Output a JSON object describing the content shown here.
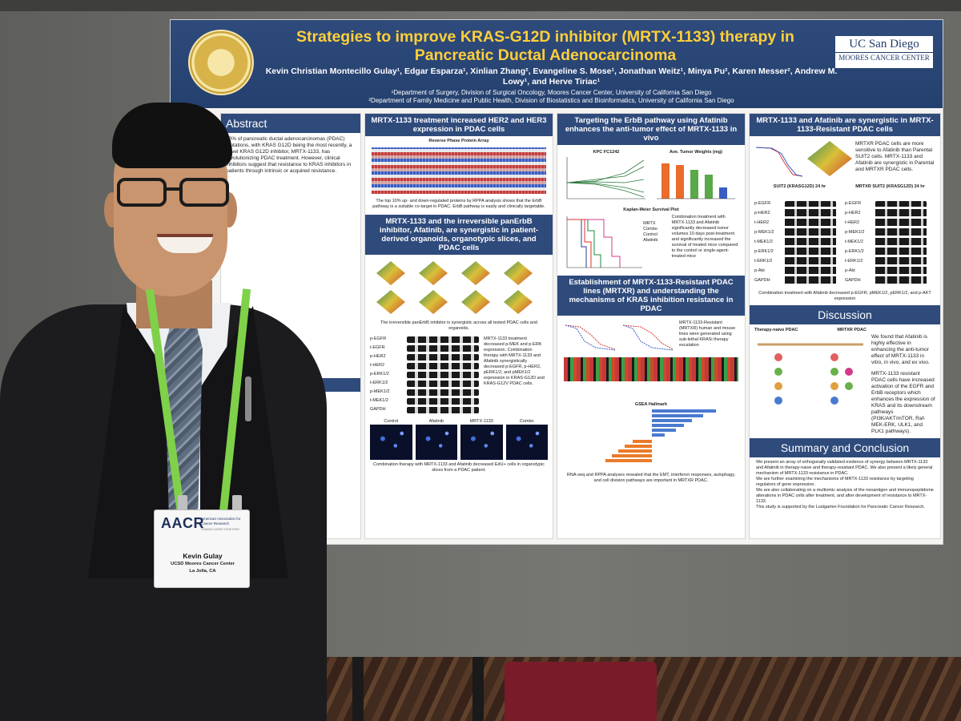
{
  "poster": {
    "title_line1": "Strategies to improve KRAS-G12D inhibitor (MRTX-1133) therapy in",
    "title_line2": "Pancreatic Ductal Adenocarcinoma",
    "authors": "Kevin Christian Montecillo Gulay¹, Edgar Esparza¹, Xinlian Zhang², Evangeline S. Mose¹, Jonathan Weitz¹, Minya Pu², Karen Messer², Andrew M. Lowy¹, and Herve Tiriac¹",
    "affiliation_1": "¹Department of Surgery, Division of Surgical Oncology, Moores Cancer Center, University of California San Diego",
    "affiliation_2": "²Department of Family Medicine and Public Health, Division of Biostatistics and Bioinformatics, University of California San Diego",
    "logo_line1": "UC San Diego",
    "logo_line2": "MOORES CANCER CENTER",
    "abstract_header": "Abstract",
    "abstract_text": "90% of pancreatic ductal adenocarcinomas (PDAC) mutations, with KRAS G12D being the most recently, a novel KRAS G12D inhibitor, MRTX-1133, has revolutionizing PDAC treatment. However, clinical inhibitors suggest that resistance to KRAS inhibitors in patients through intrinsic or acquired resistance.",
    "growth_header": "rowth in vitro",
    "sec_her": "MRTX-1133 treatment increased HER2 and HER3 expression in PDAC cells",
    "rppa_label": "Reverse Phase Protein Array",
    "her_caption": "The top 10% up- and down-regulated proteins by RPPA analysis shows that the ErbB pathway is a suitable co-target in PDAC. ErbB pathway is easily and clinically targetable.",
    "sec_panerbb": "MRTX-1133 and the irreversible panErbB inhibitor, Afatinib, are synergistic in patient-derived organoids, organotypic slices, and PDAC cells",
    "panerbb_caption": "The irreversible panErbB inhibitor is synergistic across all tested PDAC cells and organoids.",
    "blot_rows": [
      "p-EGFR",
      "t-EGFR",
      "p-HER2",
      "t-HER2",
      "p-ERK1/2",
      "t-ERK1/2",
      "p-MEK1/2",
      "t-MEK1/2",
      "GAPDH"
    ],
    "blot_caption": "MRTX-1133 treatment decreased p-MEK and p-ERK expression. Combination therapy with MRTX-1133 and Afatinib synergistically decreased p-EGFR, p-HER2, pERK1/2, and pMEK1/2 expression in KRAS-G12D and KRAS-G12V PDAC cells.",
    "micro_labels": [
      "Control",
      "Afatinib",
      "MRTX-1133",
      "Combo"
    ],
    "micro_caption": "Combination therapy with MRTX-1133 and Afatinib decreased EdU+ cells in organotypic slices from a PDAC patient.",
    "sec_vivo": "Targeting the ErbB pathway using Afatinib enhances the anti-tumor effect of MRTX-1133 in vivo",
    "kpc_label": "KPC FC1242",
    "tumor_weight_label": "Ave. Tumor Weights (mg)",
    "km_label": "Kaplan-Meier Survival Plot",
    "km_legend": [
      "MRTX",
      "Combo",
      "Control",
      "Afatinib"
    ],
    "vivo_caption": "Combination treatment with MRTX-1133 and Afatinib significantly decreased tumor volumes 10 days post-treatment and significantly increased the survival of treated mice compared to the control or single-agent-treated mice",
    "sec_resistant": "Establishment of MRTX-1133-Resistant PDAC lines (MRTXR) and understanding the mechanisms of KRAS inhibition resistance in PDAC",
    "resistant_caption": "MRTX-1133-Resistant (MRTXR) human and mouse lines were generated using sub-lethal KRASi therapy escalation",
    "gsea_label": "GSEA Hallmark",
    "rppa_caption": "RNA-seq and RPPA analyses revealed that the EMT, interferon responses, autophagy, and cell division pathways are important in MRTXR PDAC.",
    "sec_syn": "MRTX-1133 and Afatinib are synergistic in MRTX-1133-Resistant PDAC cells",
    "syn_text": "MRTXR PDAC cells are more sensitive to Afatinib than Parental SUIT2 cells. MRTX-1133 and Afatinib are synergistic in Parental and MRTXR PDAC cells.",
    "suit2_label": "SUIT2 (KRASG12D) 24 hr",
    "mrtxr_label": "MRTXR SUIT2 (KRASG12D) 24 hr",
    "syn_blot_rows": [
      "p-EGFR",
      "p-HER2",
      "t-HER2",
      "p-MEK1/2",
      "t-MEK1/2",
      "p-ERK1/2",
      "t-ERK1/2",
      "p-Akt",
      "GAPDH"
    ],
    "syn_caption": "Combination treatment with Afatinib decreased p-EGFR, pMEK1/2, pERK1/2, and p-AKT expression",
    "discussion_header": "Discussion",
    "disc_left": "Therapy-naive PDAC",
    "disc_right": "MRTXR PDAC",
    "disc_text_1": "We found that Afatinib is highly effective in enhancing the anti-tumor effect of MRTX-1133 in vitro, in vivo, and ex vivo.",
    "disc_text_2": "MRTX-1133 resistant PDAC cells have increased activation of the EGFR and ErbB receptors which enhances the expression of KRAS and its downstream pathways (PI3K/AKT/mTOR, Raf-MEK-ERK, ULK1, and PLK1 pathways).",
    "summary_header": "Summary and Conclusion",
    "summary_1": "We present an array of orthogonally validated evidence of synergy between MRTX-1133 and Afatinib in therapy-naive and therapy-resistant PDAC. We also present a likely general mechanism of MRTX-1133 resistance in PDAC.",
    "summary_2": "We are further examining the mechanisms of MRTX-1133 resistance by targeting regulators of gene expression.",
    "summary_3": "We are also collaborating on a multiomic analysis of the neoantigen and immunopeptidome alterations in PDAC cells after treatment, and after development of resistance to MRTX-1133.",
    "summary_4": "This study is supported by the Lustgarten Foundation for Pancreatic Cancer Research."
  },
  "badge": {
    "org_logo": "AACR",
    "org_name": "American Association for Cancer Research",
    "tagline": "FINDING CURES TOGETHER",
    "name": "Kevin Gulay",
    "affiliation": "UCSD Moores Cancer Center",
    "city": "La Jolla, CA"
  },
  "colors": {
    "banner": "#2f4b7c",
    "title": "#ffcf3a",
    "lanyard": "#7fd14a"
  }
}
